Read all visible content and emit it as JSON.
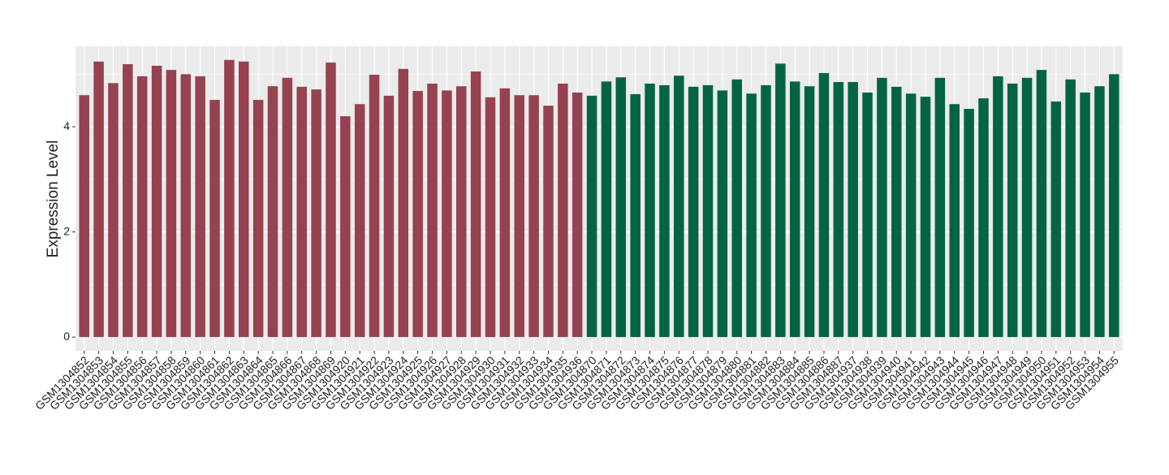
{
  "chart_data": {
    "type": "bar",
    "y_label": "Expression Level",
    "categories": [
      "GSM1304852",
      "GSM1304853",
      "GSM1304854",
      "GSM1304855",
      "GSM1304856",
      "GSM1304857",
      "GSM1304858",
      "GSM1304859",
      "GSM1304860",
      "GSM1304861",
      "GSM1304862",
      "GSM1304863",
      "GSM1304864",
      "GSM1304865",
      "GSM1304866",
      "GSM1304867",
      "GSM1304868",
      "GSM1304869",
      "GSM1304920",
      "GSM1304921",
      "GSM1304922",
      "GSM1304923",
      "GSM1304924",
      "GSM1304925",
      "GSM1304926",
      "GSM1304927",
      "GSM1304928",
      "GSM1304929",
      "GSM1304930",
      "GSM1304931",
      "GSM1304932",
      "GSM1304933",
      "GSM1304934",
      "GSM1304935",
      "GSM1304936",
      "GSM1304870",
      "GSM1304871",
      "GSM1304872",
      "GSM1304873",
      "GSM1304874",
      "GSM1304875",
      "GSM1304876",
      "GSM1304877",
      "GSM1304878",
      "GSM1304879",
      "GSM1304880",
      "GSM1304881",
      "GSM1304882",
      "GSM1304883",
      "GSM1304884",
      "GSM1304885",
      "GSM1304886",
      "GSM1304887",
      "GSM1304937",
      "GSM1304938",
      "GSM1304939",
      "GSM1304940",
      "GSM1304941",
      "GSM1304942",
      "GSM1304943",
      "GSM1304944",
      "GSM1304945",
      "GSM1304946",
      "GSM1304947",
      "GSM1304948",
      "GSM1304949",
      "GSM1304950",
      "GSM1304951",
      "GSM1304952",
      "GSM1304953",
      "GSM1304954",
      "GSM1304955"
    ],
    "values": [
      4.6,
      5.24,
      4.83,
      5.19,
      4.96,
      5.16,
      5.08,
      5.0,
      4.96,
      4.51,
      5.27,
      5.24,
      4.51,
      4.77,
      4.93,
      4.76,
      4.71,
      5.22,
      4.2,
      4.43,
      4.99,
      4.59,
      5.1,
      4.68,
      4.82,
      4.69,
      4.77,
      5.05,
      4.56,
      4.73,
      4.6,
      4.6,
      4.4,
      4.82,
      4.65,
      4.59,
      4.86,
      4.94,
      4.62,
      4.82,
      4.79,
      4.97,
      4.76,
      4.79,
      4.69,
      4.9,
      4.63,
      4.79,
      5.2,
      4.86,
      4.77,
      5.02,
      4.85,
      4.85,
      4.65,
      4.93,
      4.76,
      4.63,
      4.57,
      4.93,
      4.43,
      4.34,
      4.54,
      4.96,
      4.82,
      4.93,
      5.08,
      4.48,
      4.9,
      4.65,
      4.77,
      5.0
    ],
    "colors": [
      "#964250",
      "#964250",
      "#964250",
      "#964250",
      "#964250",
      "#964250",
      "#964250",
      "#964250",
      "#964250",
      "#964250",
      "#964250",
      "#964250",
      "#964250",
      "#964250",
      "#964250",
      "#964250",
      "#964250",
      "#964250",
      "#964250",
      "#964250",
      "#964250",
      "#964250",
      "#964250",
      "#964250",
      "#964250",
      "#964250",
      "#964250",
      "#964250",
      "#964250",
      "#964250",
      "#964250",
      "#964250",
      "#964250",
      "#964250",
      "#964250",
      "#036443",
      "#036443",
      "#036443",
      "#036443",
      "#036443",
      "#036443",
      "#036443",
      "#036443",
      "#036443",
      "#036443",
      "#036443",
      "#036443",
      "#036443",
      "#036443",
      "#036443",
      "#036443",
      "#036443",
      "#036443",
      "#036443",
      "#036443",
      "#036443",
      "#036443",
      "#036443",
      "#036443",
      "#036443",
      "#036443",
      "#036443",
      "#036443",
      "#036443",
      "#036443",
      "#036443",
      "#036443",
      "#036443",
      "#036443",
      "#036443",
      "#036443",
      "#036443"
    ],
    "ylim": [
      -0.26,
      5.53
    ],
    "yticks": [
      0,
      2,
      4
    ],
    "minor_yticks": [
      1,
      3,
      5
    ],
    "grid": true
  }
}
